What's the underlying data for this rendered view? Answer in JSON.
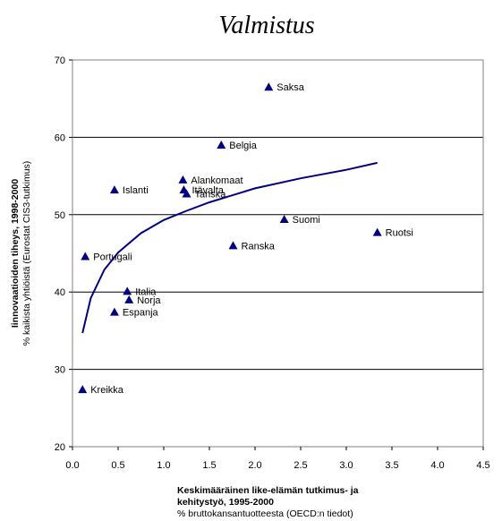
{
  "chart_data": {
    "type": "scatter",
    "title": "Valmistus",
    "xlabel_lines": [
      "Keskimääräinen like-elämän tutkimus- ja",
      "kehitystyö, 1995-2000"
    ],
    "xlabel_sub": "% bruttokansantuotteesta (OECD:n tiedot)",
    "ylabel": "Iinnovaatioiden tiheys, 1998-2000",
    "ylabel_sub": "% kaikista yhtiöistä (Eurostat CIS3-tutkimus)",
    "xlim": [
      0,
      4.5
    ],
    "ylim": [
      20,
      70
    ],
    "xticks": [
      "0.0",
      "0.5",
      "1.0",
      "1.5",
      "2.0",
      "2.5",
      "3.0",
      "3.5",
      "4.0",
      "4.5"
    ],
    "yticks": [
      "20",
      "30",
      "40",
      "50",
      "60",
      "70"
    ],
    "grid": "horizontal",
    "marker_color": "#000080",
    "curve_color": "#000080",
    "points": [
      {
        "label": "Saksa",
        "x": 2.15,
        "y": 66.5
      },
      {
        "label": "Belgia",
        "x": 1.63,
        "y": 59.0
      },
      {
        "label": "Alankomaat",
        "x": 1.21,
        "y": 54.5
      },
      {
        "label": "Islanti",
        "x": 0.46,
        "y": 53.2
      },
      {
        "label": "Itävalta",
        "x": 1.22,
        "y": 53.2
      },
      {
        "label": "Tanska",
        "x": 1.25,
        "y": 52.7
      },
      {
        "label": "Suomi",
        "x": 2.32,
        "y": 49.4
      },
      {
        "label": "Ruotsi",
        "x": 3.34,
        "y": 47.7
      },
      {
        "label": "Ranska",
        "x": 1.76,
        "y": 46.0
      },
      {
        "label": "Portugali",
        "x": 0.14,
        "y": 44.6
      },
      {
        "label": "Italia",
        "x": 0.6,
        "y": 40.1
      },
      {
        "label": "Norja",
        "x": 0.62,
        "y": 39.0
      },
      {
        "label": "Espanja",
        "x": 0.46,
        "y": 37.4
      },
      {
        "label": "Kreikka",
        "x": 0.11,
        "y": 27.4
      }
    ],
    "trendline": {
      "type": "logarithmic",
      "x": [
        0.11,
        0.2,
        0.35,
        0.5,
        0.75,
        1.0,
        1.25,
        1.5,
        2.0,
        2.5,
        3.0,
        3.34
      ],
      "y": [
        34.7,
        39.2,
        42.9,
        45.1,
        47.6,
        49.3,
        50.5,
        51.6,
        53.4,
        54.7,
        55.8,
        56.7
      ]
    }
  }
}
